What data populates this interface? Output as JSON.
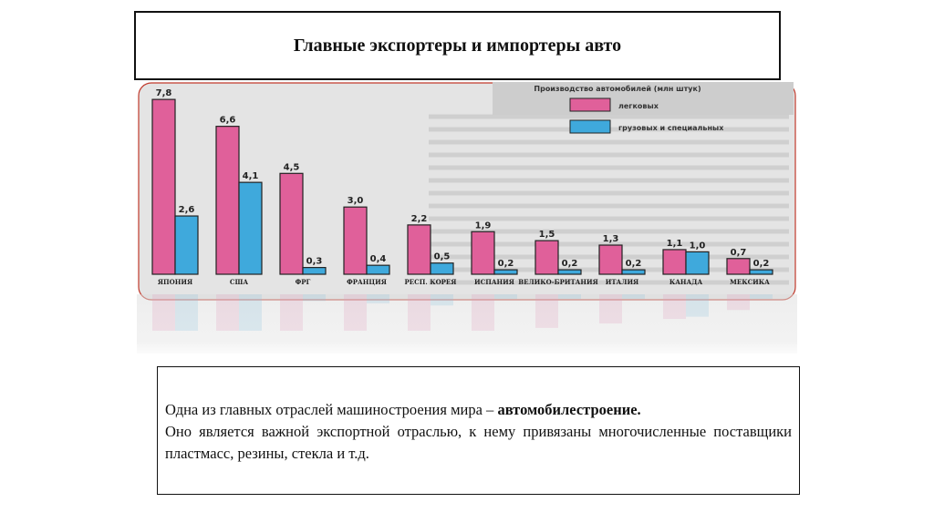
{
  "title": "Главные экспортеры и импортеры авто",
  "chart_data": {
    "type": "bar",
    "title": "Производство автомобилей (млн штук)",
    "categories": [
      "ЯПОНИЯ",
      "США",
      "ФРГ",
      "ФРАНЦИЯ",
      "РЕСП. КОРЕЯ",
      "ИСПАНИЯ",
      "ВЕЛИКО-БРИТАНИЯ",
      "ИТАЛИЯ",
      "КАНАДА",
      "МЕКСИКА"
    ],
    "series": [
      {
        "name": "легковых",
        "color": "#e0609a",
        "values": [
          7.8,
          6.6,
          4.5,
          3.0,
          2.2,
          1.9,
          1.5,
          1.3,
          1.1,
          0.7
        ],
        "labels": [
          "7,8",
          "6,6",
          "4,5",
          "3,0",
          "2,2",
          "1,9",
          "1,5",
          "1,3",
          "1,1",
          "0,7"
        ]
      },
      {
        "name": "грузовых и специальных",
        "color": "#3fa9dc",
        "values": [
          2.6,
          4.1,
          0.3,
          0.4,
          0.5,
          0.2,
          0.2,
          0.2,
          1.0,
          0.2
        ],
        "labels": [
          "2,6",
          "4,1",
          "0,3",
          "0,4",
          "0,5",
          "0,2",
          "0,2",
          "0,2",
          "1,0",
          "0,2"
        ]
      }
    ],
    "ylim": [
      0,
      8
    ]
  },
  "text": {
    "line1_plain": "Одна из главных отраслей  машиностроения мира – ",
    "line1_bold": "автомобилестроение.",
    "rest": "Оно является важной экспортной отраслью,  к нему привязаны многочисленные  поставщики пластмасс, резины, стекла и т.д."
  }
}
